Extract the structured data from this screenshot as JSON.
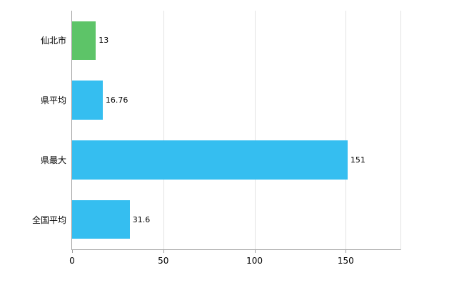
{
  "chart_data": {
    "type": "bar",
    "orientation": "horizontal",
    "title": "",
    "xlabel": "",
    "ylabel": "",
    "categories": [
      "仙北市",
      "県平均",
      "県最大",
      "全国平均"
    ],
    "values": [
      13,
      16.76,
      151,
      31.6
    ],
    "value_labels": [
      "13",
      "16.76",
      "151",
      "31.6"
    ],
    "bar_colors": [
      "#5dc468",
      "#35bef0",
      "#35bef0",
      "#35bef0"
    ],
    "xlim": [
      0,
      180
    ],
    "xticks": [
      0,
      50,
      100,
      150
    ],
    "grid": true,
    "legend": false
  },
  "colors": {
    "background": "#ffffff",
    "grid": "#e3e3e3",
    "axis": "#9e9e9e",
    "text": "#000000"
  }
}
